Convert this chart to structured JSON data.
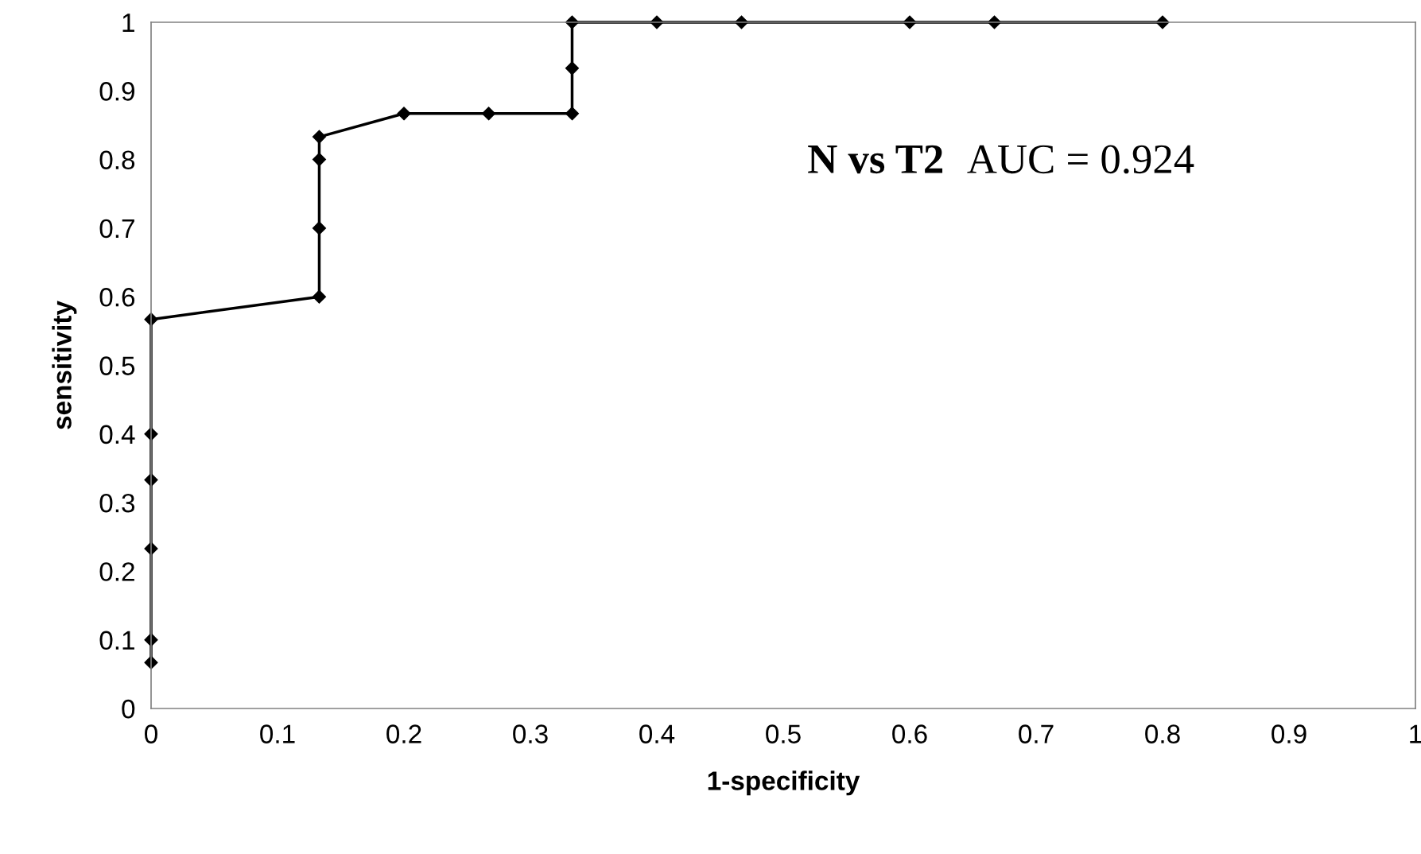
{
  "chart_data": {
    "type": "line",
    "xlabel": "1-specificity",
    "ylabel": "sensitivity",
    "annotations": [
      "N vs T2",
      "AUC = 0.924"
    ],
    "series": [
      {
        "color": "#000000",
        "x": [
          0,
          0,
          0,
          0,
          0,
          0,
          0.133,
          0.133,
          0.133,
          0.133,
          0.2,
          0.267,
          0.333,
          0.333,
          0.333,
          0.4,
          0.467,
          0.6,
          0.667,
          0.8
        ],
        "values": [
          0.067,
          0.1,
          0.233,
          0.333,
          0.4,
          0.567,
          0.6,
          0.7,
          0.8,
          0.833,
          0.867,
          0.867,
          0.867,
          0.933,
          1.0,
          1.0,
          1.0,
          1.0,
          1.0,
          1.0
        ]
      }
    ],
    "xlim": [
      0,
      1
    ],
    "ylim": [
      0,
      1
    ],
    "xticks": [
      0,
      0.1,
      0.2,
      0.3,
      0.4,
      0.5,
      0.6,
      0.7,
      0.8,
      0.9,
      1
    ],
    "yticks": [
      0,
      0.1,
      0.2,
      0.3,
      0.4,
      0.5,
      0.6,
      0.7,
      0.8,
      0.9,
      1
    ],
    "grid": false,
    "legend": false,
    "marker": "diamond",
    "line_style": "solid"
  }
}
